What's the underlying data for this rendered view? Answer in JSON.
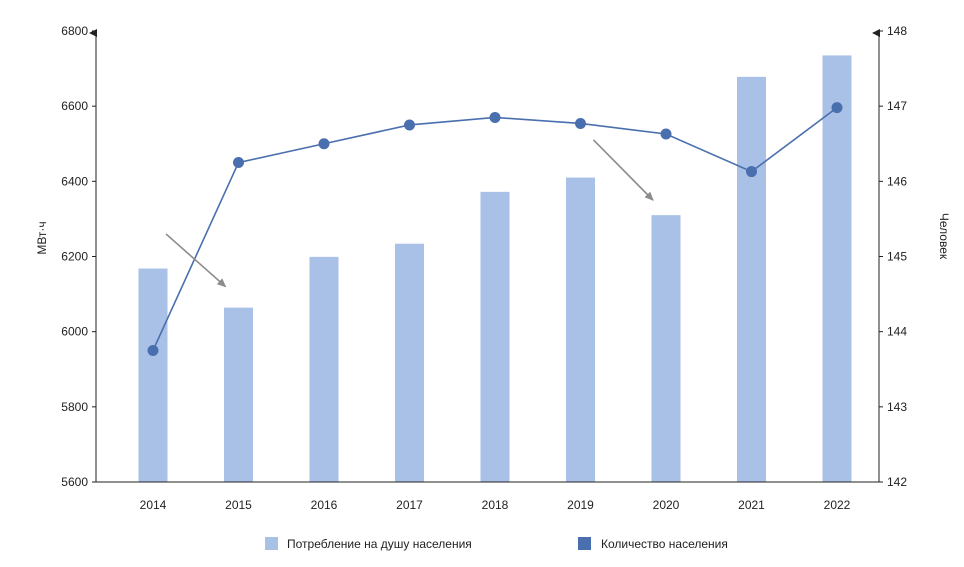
{
  "chart_data": {
    "type": "bar",
    "categories": [
      "2014",
      "2015",
      "2016",
      "2017",
      "2018",
      "2019",
      "2020",
      "2021",
      "2022"
    ],
    "series": [
      {
        "name": "Потребление на душу населения",
        "chart_type": "bar",
        "axis": "left",
        "values": [
          6168,
          6064,
          6199,
          6234,
          6372,
          6410,
          6310,
          6678,
          6735
        ],
        "color": "#a9c1e6"
      },
      {
        "name": "Количество населения",
        "chart_type": "line",
        "axis": "right",
        "values": [
          143.75,
          146.25,
          146.5,
          146.75,
          146.85,
          146.77,
          146.63,
          146.13,
          146.98
        ],
        "color": "#4a6fae"
      }
    ],
    "ylabel": "МВт·ч",
    "ylabel_right": "Человек",
    "ylim": [
      5600,
      6800
    ],
    "ylim_right": [
      142,
      148
    ],
    "yticks": [
      "5600",
      "5800",
      "6000",
      "6200",
      "6400",
      "6600",
      "6800"
    ],
    "yticks_right": [
      "142",
      "143",
      "144",
      "145",
      "146",
      "147",
      "148"
    ],
    "grid": false,
    "legend_position": "bottom",
    "annotations": [
      {
        "type": "arrow",
        "from": [
          "2014",
          145.3
        ],
        "to": [
          "2015",
          144.6
        ],
        "color": "#8c8c8c"
      },
      {
        "type": "arrow",
        "from": [
          "2019",
          146.55
        ],
        "to": [
          "2020",
          145.75
        ],
        "color": "#8c8c8c"
      }
    ]
  }
}
